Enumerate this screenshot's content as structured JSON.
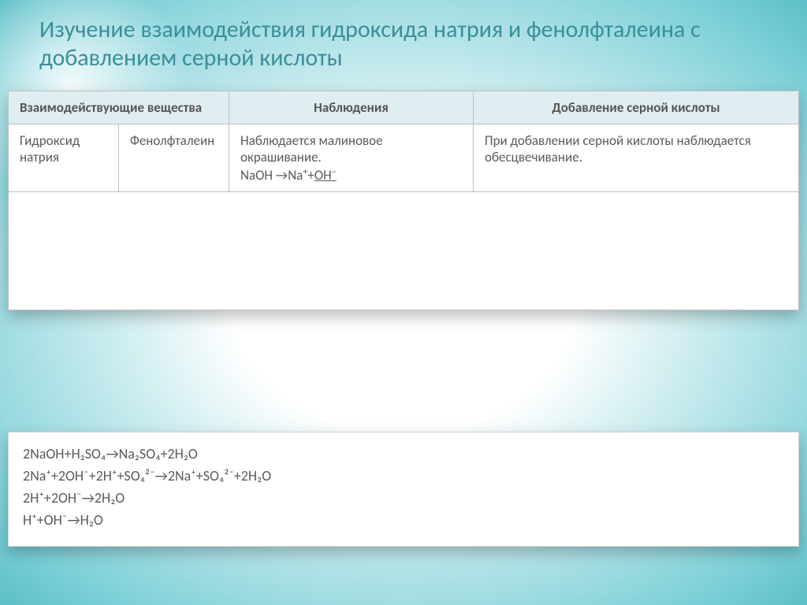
{
  "title": "Изучение взаимодействия гидроксида натрия и фенолфталеина  с добавлением серной кислоты",
  "headers": {
    "col1": "Взаимодействующие вещества",
    "col2": "Наблюдения",
    "col3": "Добавление серной кислоты"
  },
  "row": {
    "substance1": "Гидроксид натрия",
    "substance2": "Фенолфталеин",
    "observation_text": "Наблюдается малиновое окрашивание.",
    "observation_formula_prefix": "NaOH →Na",
    "observation_formula_sup1": "+",
    "observation_formula_plus": "+",
    "observation_formula_oh": "OH",
    "observation_formula_sup2": "–",
    "acid": "При добавлении серной кислоты наблюдается обесцвечивание."
  },
  "formulas": {
    "l1": "2NaOH+H₂SO₄→Na₂SO₄+2H₂O",
    "l2": "2Na⁺+2OH⁻+2H⁺+SO₄²⁻→2Na⁺+SO₄²⁻+2H₂O",
    "l3": "2H⁺+2OH⁻→2H₂O",
    "l4": "H⁺+OH⁻→H₂O"
  },
  "colors": {
    "title_color": "#3a8f9a",
    "bg_gradient_inner": "#ffffff",
    "bg_gradient_outer": "#5cbfc7",
    "header_bg": "#dfeef0",
    "border": "#bfbfbf",
    "text": "#5a5a5a"
  },
  "fonts": {
    "title_size": 30,
    "table_size": 17,
    "formula_size": 18
  }
}
